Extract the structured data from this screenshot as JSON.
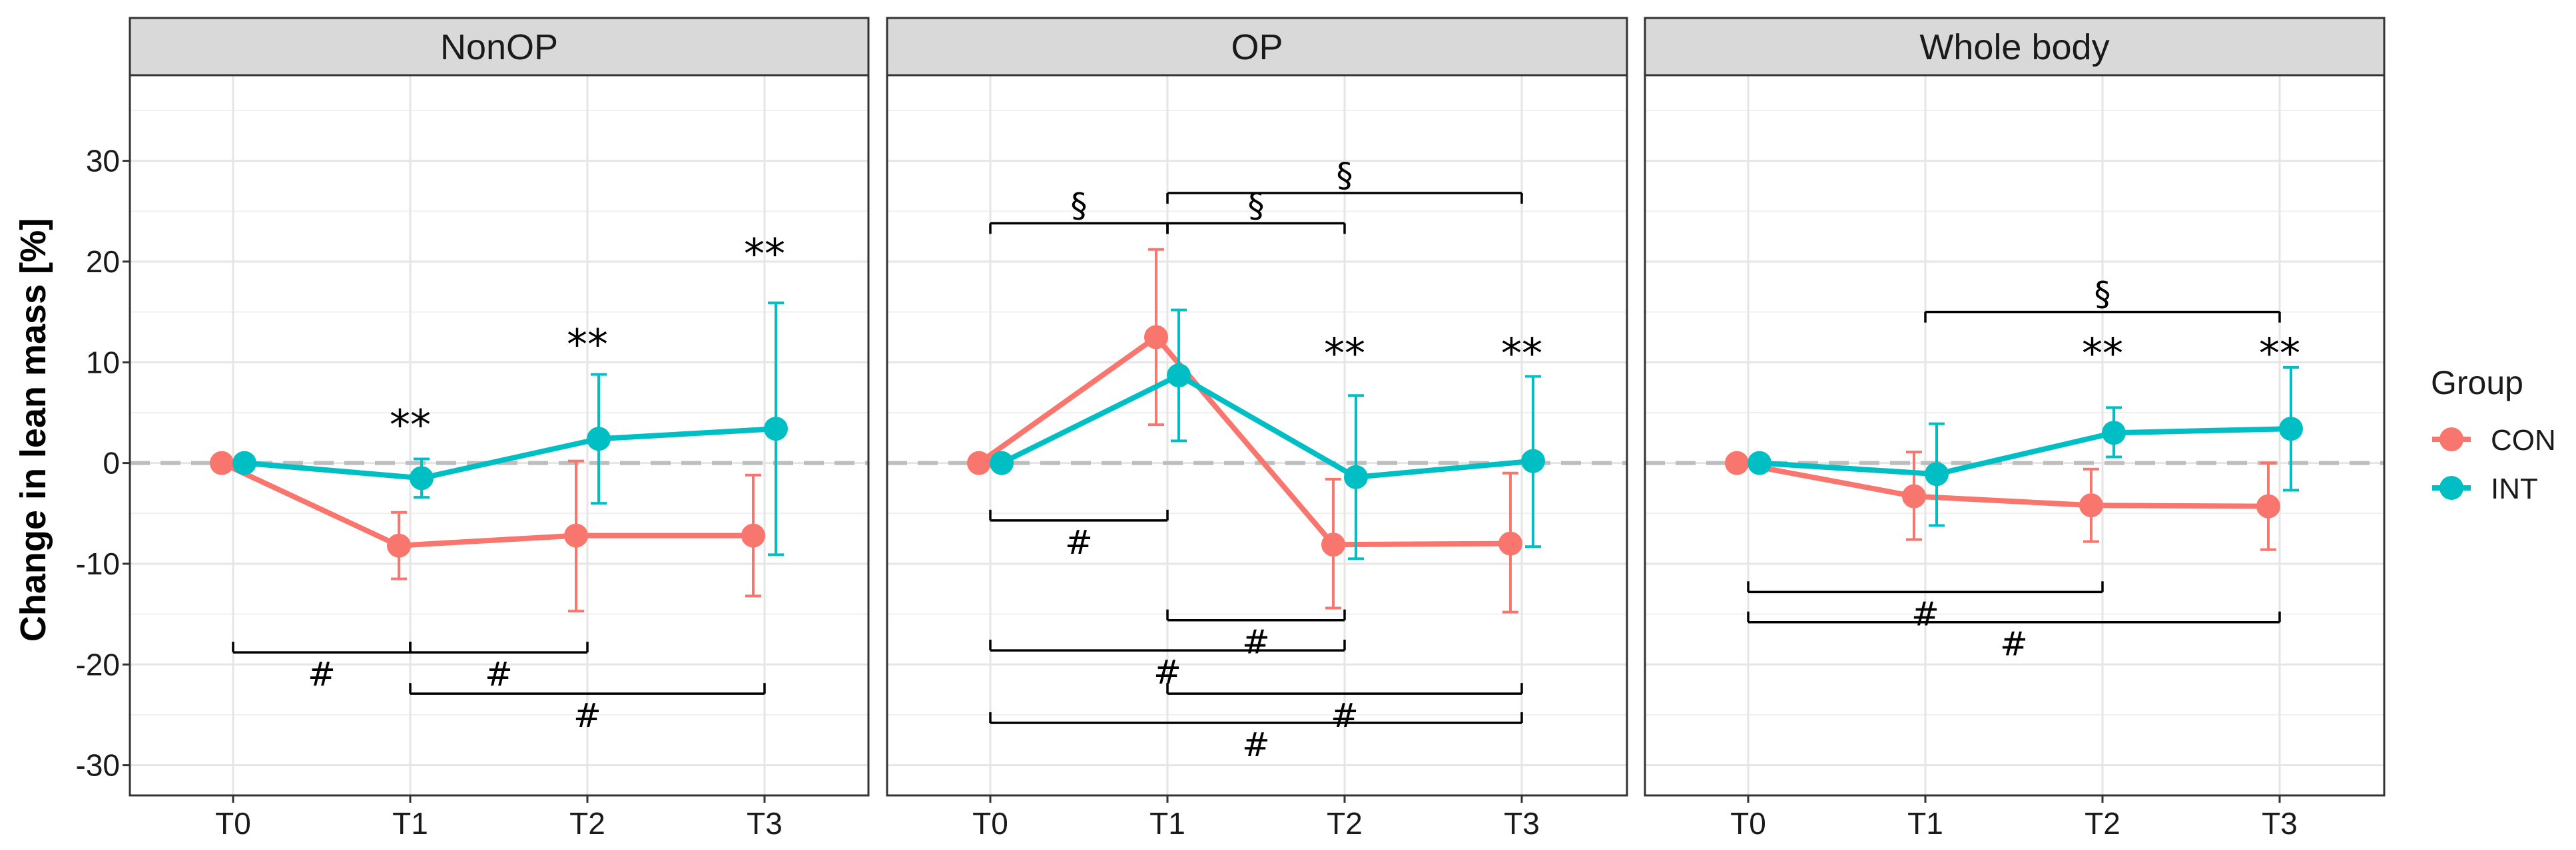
{
  "chart_data": {
    "type": "line",
    "ylabel": "Change in lean mass [%]",
    "xlabel": "",
    "categories": [
      "T0",
      "T1",
      "T2",
      "T3"
    ],
    "ylim": [
      -33,
      38.5
    ],
    "yticks": [
      30,
      20,
      10,
      0,
      -10,
      -20,
      -30
    ],
    "ytick_labels": [
      "30",
      "20",
      "10",
      "0",
      "-10",
      "-20",
      "-30"
    ],
    "reference_line": 0,
    "legend": {
      "title": "Group",
      "placement": "right",
      "entries": [
        {
          "name": "CON",
          "color": "#F8766D"
        },
        {
          "name": "INT",
          "color": "#00BFC4"
        }
      ]
    },
    "panels": [
      {
        "title": "NonOP",
        "series": [
          {
            "name": "CON",
            "color": "#F8766D",
            "values": [
              0,
              -8.2,
              -7.2,
              -7.2
            ],
            "lower": [
              null,
              -11.5,
              -14.7,
              -13.2
            ],
            "upper": [
              null,
              -4.9,
              0.2,
              -1.2
            ]
          },
          {
            "name": "INT",
            "color": "#00BFC4",
            "values": [
              0,
              -1.5,
              2.4,
              3.4
            ],
            "lower": [
              null,
              -3.4,
              -4.0,
              -9.1
            ],
            "upper": [
              null,
              0.4,
              8.8,
              15.9
            ]
          }
        ],
        "annotations": [
          {
            "text": "**",
            "x": "T1",
            "y": 3.8
          },
          {
            "text": "**",
            "x": "T2",
            "y": 11.8
          },
          {
            "text": "**",
            "x": "T3",
            "y": 20.8
          }
        ],
        "brackets": [
          {
            "from": "T0",
            "to": "T1",
            "y": -18.8,
            "label": "#",
            "label_pos": "below"
          },
          {
            "from": "T1",
            "to": "T2",
            "y": -18.8,
            "label": "#",
            "label_pos": "below"
          },
          {
            "from": "T1",
            "to": "T3",
            "y": -22.9,
            "label": "#",
            "label_pos": "below"
          }
        ]
      },
      {
        "title": "OP",
        "series": [
          {
            "name": "CON",
            "color": "#F8766D",
            "values": [
              0,
              12.5,
              -8.1,
              -8.0
            ],
            "lower": [
              null,
              3.8,
              -14.4,
              -14.8
            ],
            "upper": [
              null,
              21.2,
              -1.6,
              -1.0
            ]
          },
          {
            "name": "INT",
            "color": "#00BFC4",
            "values": [
              0,
              8.7,
              -1.4,
              0.2
            ],
            "lower": [
              null,
              2.2,
              -9.5,
              -8.3
            ],
            "upper": [
              null,
              15.2,
              6.7,
              8.6
            ]
          }
        ],
        "annotations": [
          {
            "text": "**",
            "x": "T2",
            "y": 10.9
          },
          {
            "text": "**",
            "x": "T3",
            "y": 10.9
          }
        ],
        "brackets": [
          {
            "from": "T0",
            "to": "T1",
            "y": 23.8,
            "label": "§",
            "label_pos": "above"
          },
          {
            "from": "T1",
            "to": "T2",
            "y": 23.8,
            "label": "§",
            "label_pos": "above"
          },
          {
            "from": "T1",
            "to": "T3",
            "y": 26.8,
            "label": "§",
            "label_pos": "above"
          },
          {
            "from": "T0",
            "to": "T1",
            "y": -5.7,
            "label": "#",
            "label_pos": "below"
          },
          {
            "from": "T1",
            "to": "T2",
            "y": -15.6,
            "label": "#",
            "label_pos": "below"
          },
          {
            "from": "T0",
            "to": "T2",
            "y": -18.6,
            "label": "#",
            "label_pos": "below"
          },
          {
            "from": "T1",
            "to": "T3",
            "y": -22.9,
            "label": "#",
            "label_pos": "below"
          },
          {
            "from": "T0",
            "to": "T3",
            "y": -25.8,
            "label": "#",
            "label_pos": "below"
          }
        ]
      },
      {
        "title": "Whole body",
        "series": [
          {
            "name": "CON",
            "color": "#F8766D",
            "values": [
              0,
              -3.3,
              -4.2,
              -4.3
            ],
            "lower": [
              null,
              -7.6,
              -7.8,
              -8.6
            ],
            "upper": [
              null,
              1.1,
              -0.6,
              0.0
            ]
          },
          {
            "name": "INT",
            "color": "#00BFC4",
            "values": [
              0,
              -1.1,
              3.0,
              3.4
            ],
            "lower": [
              null,
              -6.2,
              0.6,
              -2.7
            ],
            "upper": [
              null,
              3.9,
              5.5,
              9.5
            ]
          }
        ],
        "annotations": [
          {
            "text": "**",
            "x": "T2",
            "y": 10.9
          },
          {
            "text": "**",
            "x": "T3",
            "y": 10.9
          }
        ],
        "brackets": [
          {
            "from": "T1",
            "to": "T3",
            "y": 15.0,
            "label": "§",
            "label_pos": "above"
          },
          {
            "from": "T0",
            "to": "T2",
            "y": -12.8,
            "label": "#",
            "label_pos": "below"
          },
          {
            "from": "T0",
            "to": "T3",
            "y": -15.8,
            "label": "#",
            "label_pos": "below"
          }
        ]
      }
    ]
  }
}
